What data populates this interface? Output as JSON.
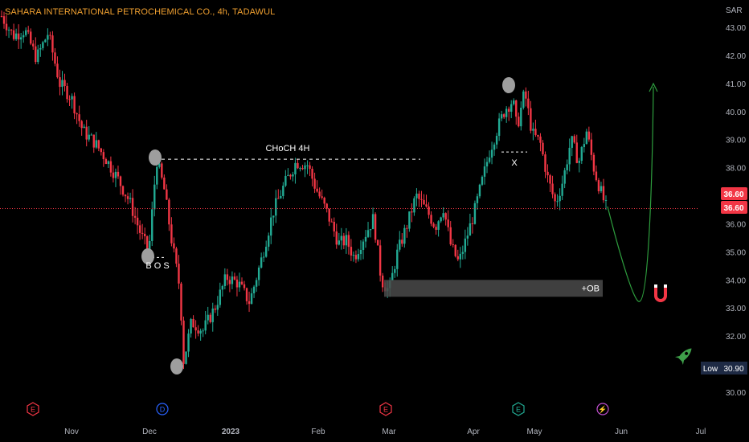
{
  "header": {
    "title": "SAHARA INTERNATIONAL PETROCHEMICAL CO., 4h, TADAWUL",
    "currency": "SAR"
  },
  "colors": {
    "up": "#22ab94",
    "down": "#f23645",
    "background": "#000000",
    "axis_text": "#b2b5be",
    "price_line": "#f23645",
    "badge": "#f23645",
    "low_badge": "#1e2a44",
    "ob_box": "#4a4a4a",
    "projection": "#2e9e3e",
    "marker": "#9e9e9e"
  },
  "chart_data": {
    "type": "candlestick",
    "symbol": "SAHARA INTERNATIONAL PETROCHEMICAL CO.",
    "interval": "4h",
    "exchange": "TADAWUL",
    "ylim": [
      29.6,
      43.6
    ],
    "y_ticks": [
      "43.00",
      "42.00",
      "41.00",
      "40.00",
      "39.00",
      "38.00",
      "37.00",
      "36.00",
      "35.00",
      "34.00",
      "33.00",
      "32.00",
      "31.00",
      "30.00"
    ],
    "x_ticks": [
      "Nov",
      "Dec",
      "2023",
      "Feb",
      "Mar",
      "Apr",
      "May",
      "Jun",
      "Jul"
    ],
    "price_path": [
      [
        0.0,
        43.4
      ],
      [
        0.03,
        42.7
      ],
      [
        0.06,
        42.9
      ],
      [
        0.09,
        41.9
      ],
      [
        0.12,
        42.8
      ],
      [
        0.15,
        41.0
      ],
      [
        0.18,
        40.5
      ],
      [
        0.21,
        39.3
      ],
      [
        0.24,
        38.9
      ],
      [
        0.27,
        38.3
      ],
      [
        0.3,
        37.6
      ],
      [
        0.33,
        36.8
      ],
      [
        0.36,
        35.6
      ],
      [
        0.38,
        35.0
      ],
      [
        0.4,
        38.3
      ],
      [
        0.42,
        37.2
      ],
      [
        0.44,
        35.3
      ],
      [
        0.46,
        33.7
      ],
      [
        0.47,
        31.1
      ],
      [
        0.49,
        32.5
      ],
      [
        0.52,
        32.2
      ],
      [
        0.55,
        33.0
      ],
      [
        0.58,
        34.1
      ],
      [
        0.61,
        33.9
      ],
      [
        0.64,
        33.2
      ],
      [
        0.67,
        34.7
      ],
      [
        0.7,
        36.4
      ],
      [
        0.73,
        37.4
      ],
      [
        0.76,
        38.2
      ],
      [
        0.79,
        38.1
      ],
      [
        0.81,
        37.3
      ],
      [
        0.84,
        36.4
      ],
      [
        0.87,
        35.3
      ],
      [
        0.89,
        35.4
      ],
      [
        0.91,
        34.8
      ],
      [
        0.93,
        35.4
      ],
      [
        0.96,
        36.2
      ],
      [
        0.98,
        34.0
      ],
      [
        1.0,
        33.6
      ],
      [
        1.02,
        34.9
      ],
      [
        1.05,
        36.1
      ],
      [
        1.07,
        37.0
      ],
      [
        1.1,
        36.4
      ],
      [
        1.12,
        35.9
      ],
      [
        1.14,
        36.6
      ],
      [
        1.16,
        35.2
      ],
      [
        1.18,
        34.6
      ],
      [
        1.2,
        35.5
      ],
      [
        1.22,
        36.4
      ],
      [
        1.24,
        37.5
      ],
      [
        1.26,
        38.6
      ],
      [
        1.28,
        39.4
      ],
      [
        1.3,
        40.1
      ],
      [
        1.32,
        40.4
      ],
      [
        1.33,
        39.4
      ],
      [
        1.35,
        40.7
      ],
      [
        1.37,
        39.2
      ],
      [
        1.39,
        38.9
      ],
      [
        1.41,
        37.6
      ],
      [
        1.43,
        36.7
      ],
      [
        1.45,
        37.6
      ],
      [
        1.47,
        39.0
      ],
      [
        1.49,
        38.2
      ],
      [
        1.51,
        39.3
      ],
      [
        1.53,
        37.9
      ],
      [
        1.55,
        37.0
      ],
      [
        1.56,
        36.6
      ]
    ],
    "annotations": [
      {
        "label": "CHoCH 4H",
        "value": 38.3
      },
      {
        "label": "B O S",
        "value": 34.8
      },
      {
        "label": "X",
        "value": 38.5
      },
      {
        "label": "+OB",
        "range": [
          33.4,
          34.0
        ]
      }
    ],
    "last_price": "36.60",
    "last_price_secondary": "36.60",
    "low": {
      "label": "Low",
      "value": "30.90"
    }
  },
  "event_icons": [
    "E",
    "D",
    "E",
    "E",
    "⚡"
  ],
  "projection_icons": {
    "magnet": "magnet-icon",
    "rocket": "rocket-icon"
  }
}
